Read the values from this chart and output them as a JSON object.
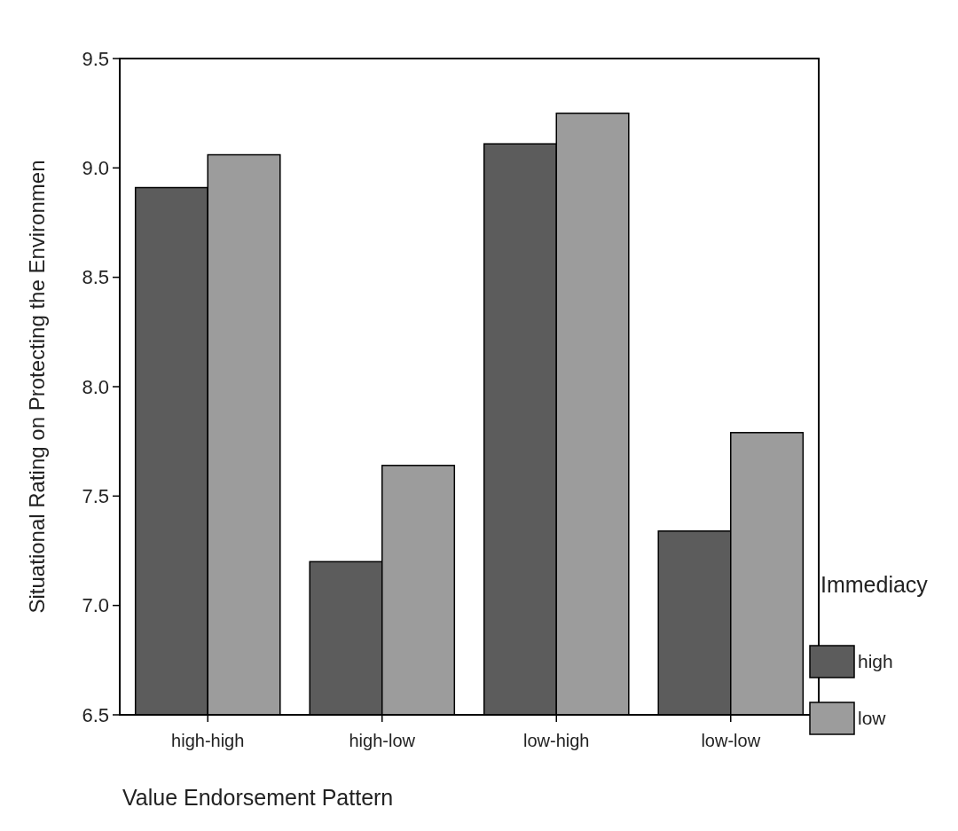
{
  "chart_data": {
    "type": "bar",
    "xlabel": "Value Endorsement Pattern",
    "ylabel": "Situational Rating on Protecting the Environmen",
    "legend_title": "Immediacy",
    "categories": [
      "high-high",
      "high-low",
      "low-high",
      "low-low"
    ],
    "series": [
      {
        "name": "high",
        "color": "#5c5c5c",
        "values": [
          8.91,
          7.2,
          9.11,
          7.34
        ]
      },
      {
        "name": "low",
        "color": "#9c9c9c",
        "values": [
          9.06,
          7.64,
          9.25,
          7.79
        ]
      }
    ],
    "ylim": [
      6.5,
      9.5
    ],
    "yticks": [
      {
        "value": 6.5,
        "label": "6.5"
      },
      {
        "value": 7,
        "label": "7.0"
      },
      {
        "value": 7.5,
        "label": "7.5"
      },
      {
        "value": 8,
        "label": "8.0"
      },
      {
        "value": 8.5,
        "label": "8.5"
      },
      {
        "value": 9,
        "label": "9.0"
      },
      {
        "value": 9.5,
        "label": "9.5"
      }
    ],
    "legend": "right"
  }
}
